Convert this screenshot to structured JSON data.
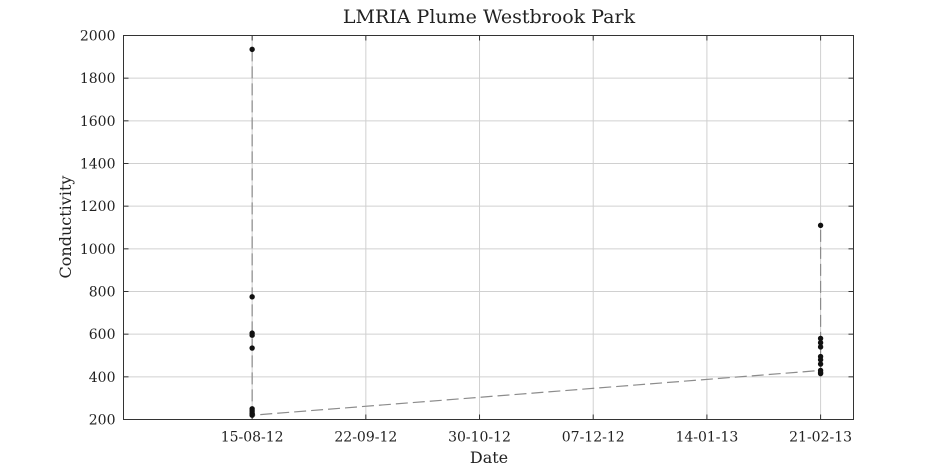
{
  "chart_data": {
    "type": "line",
    "title": "LMRIA Plume Westbrook Park",
    "xlabel": "Date",
    "ylabel": "Conductivity",
    "x_tick_labels": [
      "15-08-12",
      "22-09-12",
      "30-10-12",
      "07-12-12",
      "14-01-13",
      "21-02-13"
    ],
    "x_ticks": [
      "2012-08-15",
      "2012-09-22",
      "2012-10-30",
      "2012-12-07",
      "2013-01-14",
      "2013-02-21"
    ],
    "xlim": [
      "2012-07-03",
      "2013-03-04"
    ],
    "ylim": [
      200,
      2000
    ],
    "y_ticks": [
      200,
      400,
      600,
      800,
      1000,
      1200,
      1400,
      1600,
      1800,
      2000
    ],
    "grid": true,
    "series": [
      {
        "color": "#8c8c8c",
        "marker_color": "#111111",
        "points": [
          {
            "x": "2012-08-15",
            "y": 1935
          },
          {
            "x": "2012-08-15",
            "y": 775
          },
          {
            "x": "2012-08-15",
            "y": 605
          },
          {
            "x": "2012-08-15",
            "y": 595
          },
          {
            "x": "2012-08-15",
            "y": 535
          },
          {
            "x": "2012-08-15",
            "y": 250
          },
          {
            "x": "2012-08-15",
            "y": 240
          },
          {
            "x": "2012-08-15",
            "y": 230
          },
          {
            "x": "2012-08-15",
            "y": 225
          },
          {
            "x": "2012-08-15",
            "y": 220
          },
          {
            "x": "2013-02-21",
            "y": 430
          },
          {
            "x": "2013-02-21",
            "y": 415
          },
          {
            "x": "2013-02-21",
            "y": 420
          },
          {
            "x": "2013-02-21",
            "y": 460
          },
          {
            "x": "2013-02-21",
            "y": 480
          },
          {
            "x": "2013-02-21",
            "y": 495
          },
          {
            "x": "2013-02-21",
            "y": 540
          },
          {
            "x": "2013-02-21",
            "y": 560
          },
          {
            "x": "2013-02-21",
            "y": 580
          },
          {
            "x": "2013-02-21",
            "y": 1110
          }
        ]
      }
    ]
  }
}
